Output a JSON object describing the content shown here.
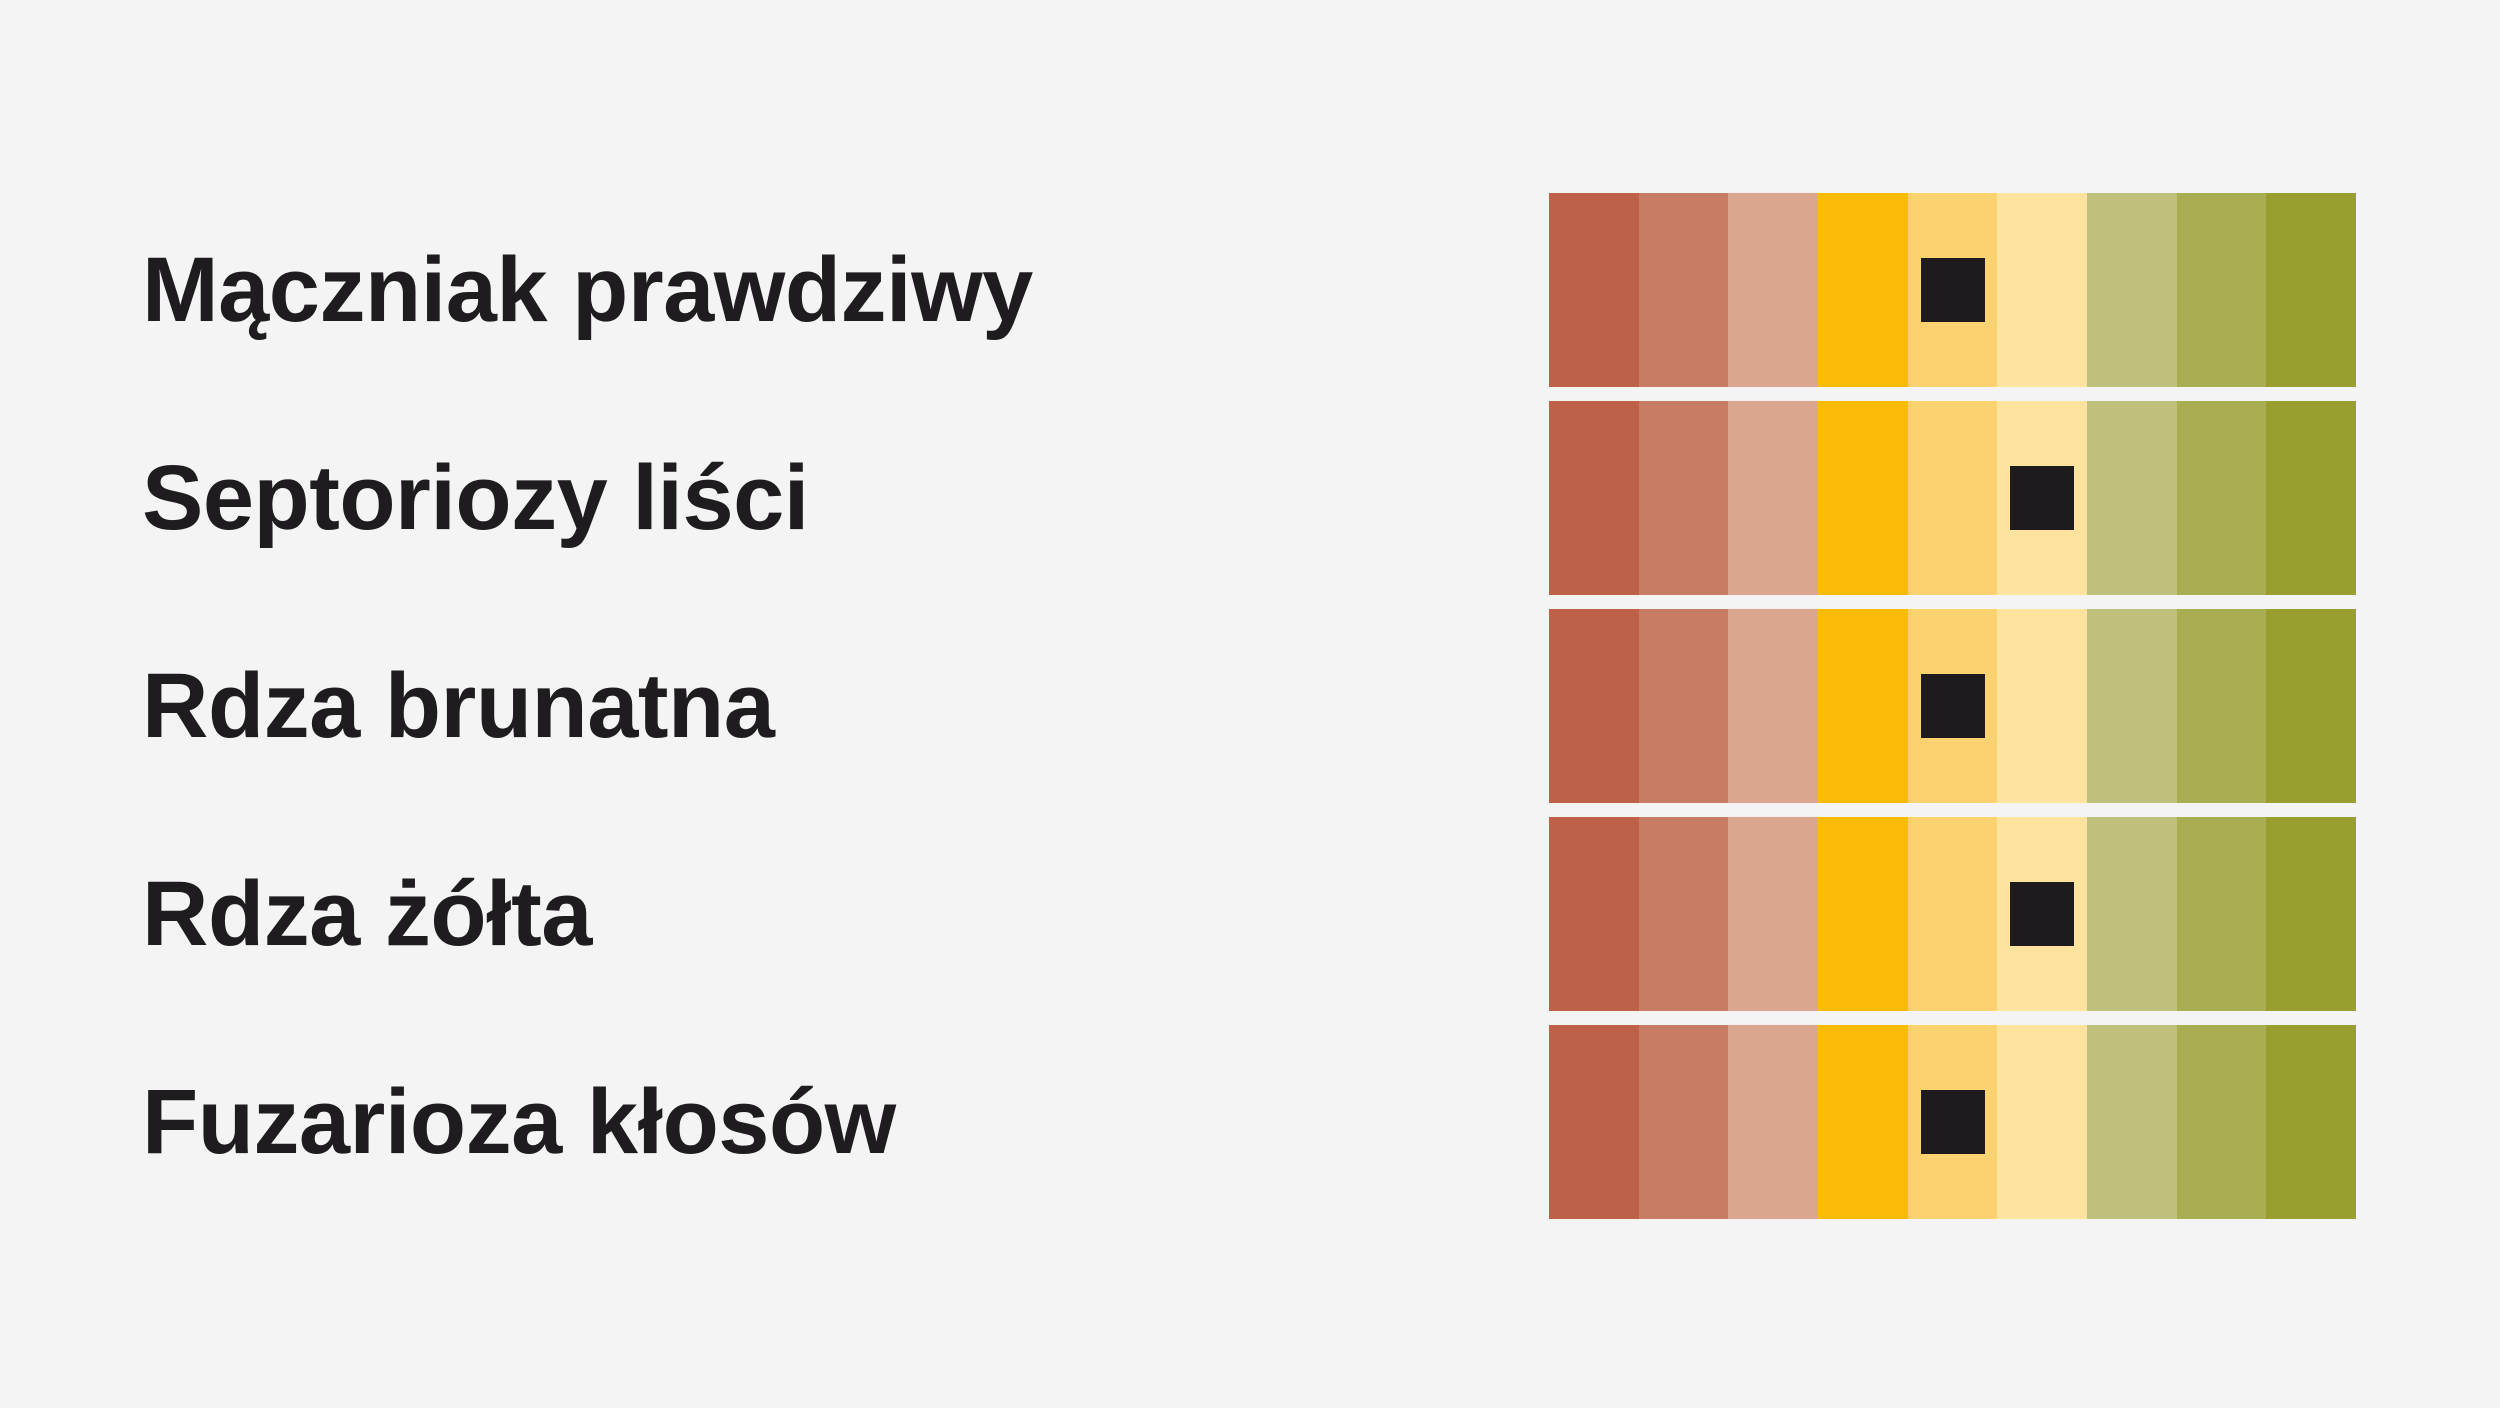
{
  "chart_data": {
    "type": "rating-scale",
    "title": "",
    "scale_steps": 9,
    "colors": [
      "#bd6148",
      "#c97c64",
      "#daa68f",
      "#fbbb07",
      "#fcd270",
      "#fde39d",
      "#c0c07d",
      "#aaae53",
      "#989f2f"
    ],
    "rows": [
      {
        "label": "Mączniak prawdziwy",
        "value": 5
      },
      {
        "label": "Septoriozy liści",
        "value": 6
      },
      {
        "label": "Rdza brunatna",
        "value": 5
      },
      {
        "label": "Rdza żółta",
        "value": 6
      },
      {
        "label": "Fuzarioza kłosów",
        "value": 5
      }
    ]
  }
}
